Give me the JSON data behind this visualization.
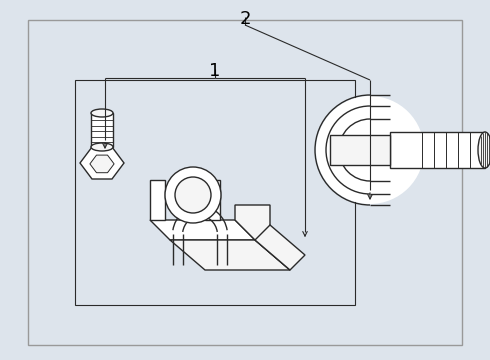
{
  "bg_color": "#dde4ec",
  "border_color": "#888888",
  "line_color": "#2a2a2a",
  "fill_white": "#ffffff",
  "fill_light": "#f5f5f5",
  "label1": "1",
  "label2": "2",
  "figsize": [
    4.9,
    3.6
  ],
  "dpi": 100
}
